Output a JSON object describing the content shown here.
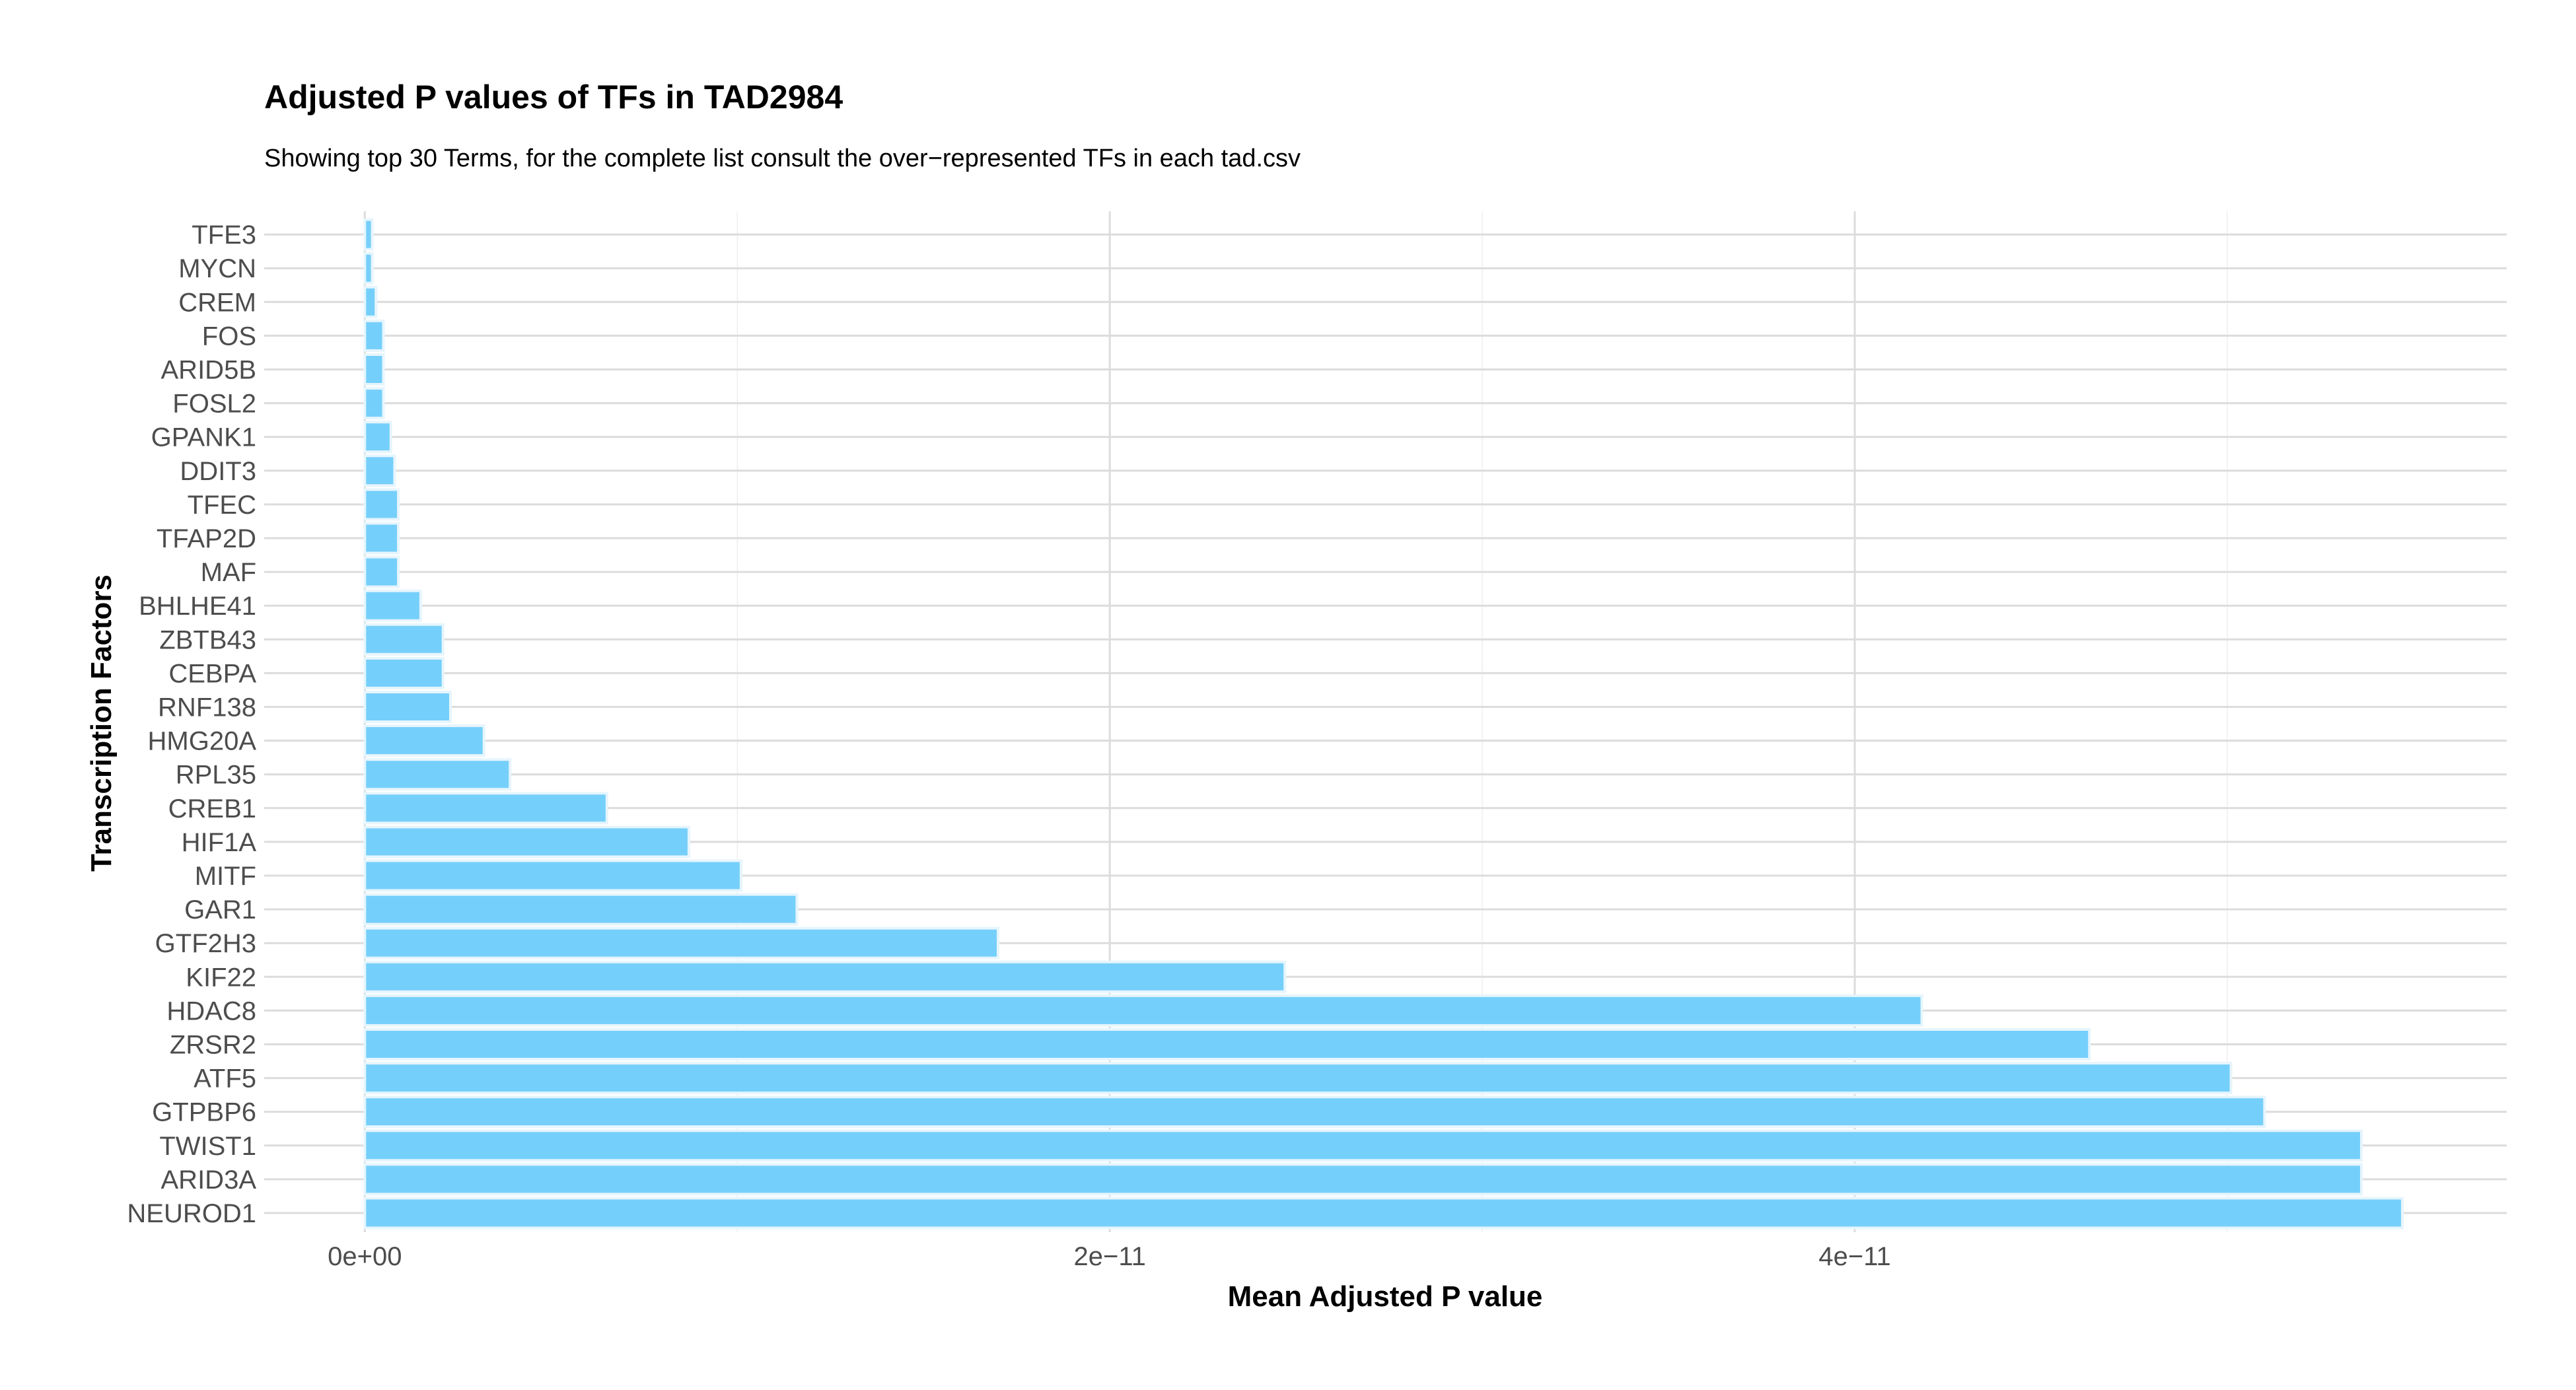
{
  "chart_data": {
    "type": "bar",
    "orientation": "horizontal",
    "title": "Adjusted P values of TFs in TAD2984",
    "subtitle": "Showing top 30 Terms, for the complete list consult the over−represented TFs in each tad.csv",
    "xlabel": "Mean Adjusted P value",
    "ylabel": "Transcription Factors",
    "categories": [
      "NEUROD1",
      "ARID3A",
      "TWIST1",
      "GTPBP6",
      "ATF5",
      "ZRSR2",
      "HDAC8",
      "KIF22",
      "GTF2H3",
      "GAR1",
      "MITF",
      "HIF1A",
      "CREB1",
      "RPL35",
      "HMG20A",
      "RNF138",
      "CEBPA",
      "ZBTB43",
      "BHLHE41",
      "MAF",
      "TFAP2D",
      "TFEC",
      "DDIT3",
      "GPANK1",
      "FOSL2",
      "ARID5B",
      "FOS",
      "CREM",
      "MYCN",
      "TFE3"
    ],
    "values": [
      5.47e-11,
      5.36e-11,
      5.36e-11,
      5.1e-11,
      5.01e-11,
      4.63e-11,
      4.18e-11,
      2.47e-11,
      1.7e-11,
      1.16e-11,
      1.01e-11,
      8.7e-12,
      6.5e-12,
      3.9e-12,
      3.2e-12,
      2.3e-12,
      2.1e-12,
      2.1e-12,
      1.5e-12,
      9e-13,
      9e-13,
      9e-13,
      8e-13,
      7e-13,
      5e-13,
      5e-13,
      5e-13,
      3e-13,
      2e-13,
      2e-13
    ],
    "x_ticks": [
      0,
      2e-11,
      4e-11
    ],
    "x_tick_labels": [
      "0e+00",
      "2e−11",
      "4e−11"
    ],
    "xlim": [
      -2.7e-12,
      5.75e-11
    ],
    "grid": true,
    "legend": "none",
    "colors": {
      "bar_fill": "#75cffb",
      "bar_stroke": "#e6f5fd",
      "grid_major": "#dcdcdc",
      "grid_minor": "#efefef"
    }
  }
}
